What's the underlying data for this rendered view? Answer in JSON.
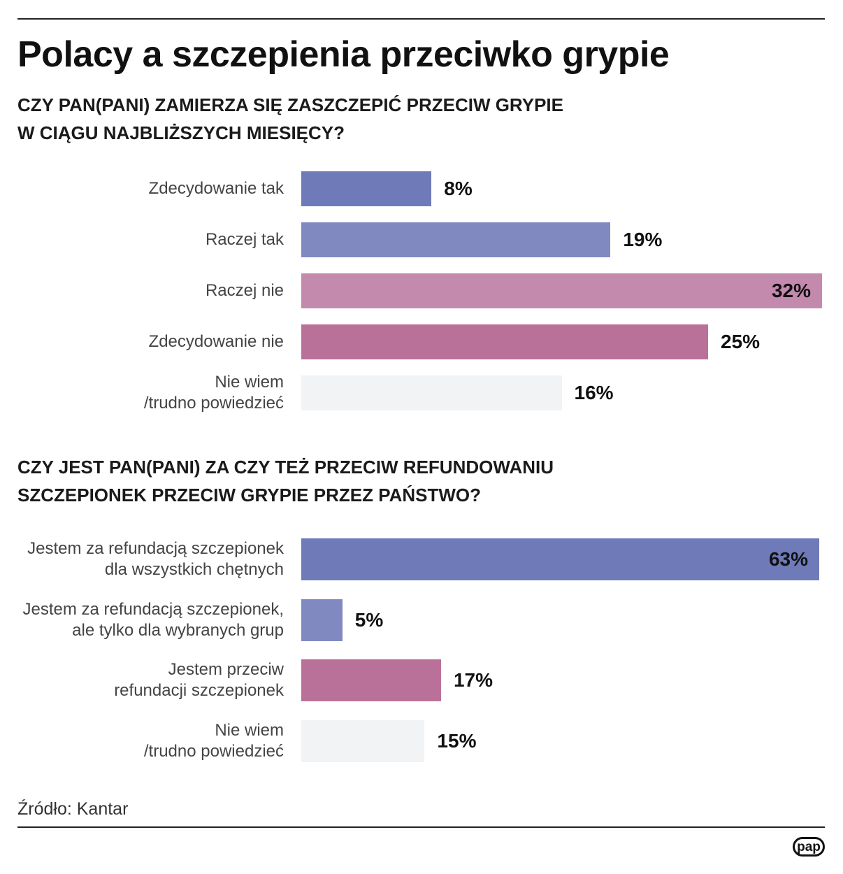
{
  "title": "Polacy a szczepienia przeciwko grypie",
  "chart_data": [
    {
      "type": "bar",
      "orientation": "horizontal",
      "title": "CZY PAN(PANI) ZAMIERZA SIĘ ZASZCZEPIĆ PRZECIW GRYPIE\nW CIĄGU NAJBLIŻSZYCH MIESIĘCY?",
      "categories": [
        "Zdecydowanie tak",
        "Raczej tak",
        "Raczej nie",
        "Zdecydowanie nie",
        "Nie wiem\n/trudno powiedzieć"
      ],
      "values": [
        8,
        19,
        32,
        25,
        16
      ],
      "value_labels": [
        "8%",
        "19%",
        "32%",
        "25%",
        "16%"
      ],
      "colors": [
        "#6e7bb8",
        "#8189c1",
        "#c48aae",
        "#ba7199",
        "#f2f3f5"
      ]
    },
    {
      "type": "bar",
      "orientation": "horizontal",
      "title": "CZY JEST PAN(PANI) ZA CZY TEŻ PRZECIW REFUNDOWANIU\nSZCZEPIONEK PRZECIW GRYPIE PRZEZ PAŃSTWO?",
      "categories": [
        "Jestem za refundacją szczepionek\ndla wszystkich chętnych",
        "Jestem za refundacją szczepionek,\nale tylko dla wybranych grup",
        "Jestem przeciw\nrefundacji szczepionek",
        "Nie wiem\n/trudno powiedzieć"
      ],
      "values": [
        63,
        5,
        17,
        15
      ],
      "value_labels": [
        "63%",
        "5%",
        "17%",
        "15%"
      ],
      "colors": [
        "#6e7bb8",
        "#8189c1",
        "#ba7199",
        "#f2f3f5"
      ]
    }
  ],
  "source": "Źródło: Kantar",
  "logo": "pap"
}
